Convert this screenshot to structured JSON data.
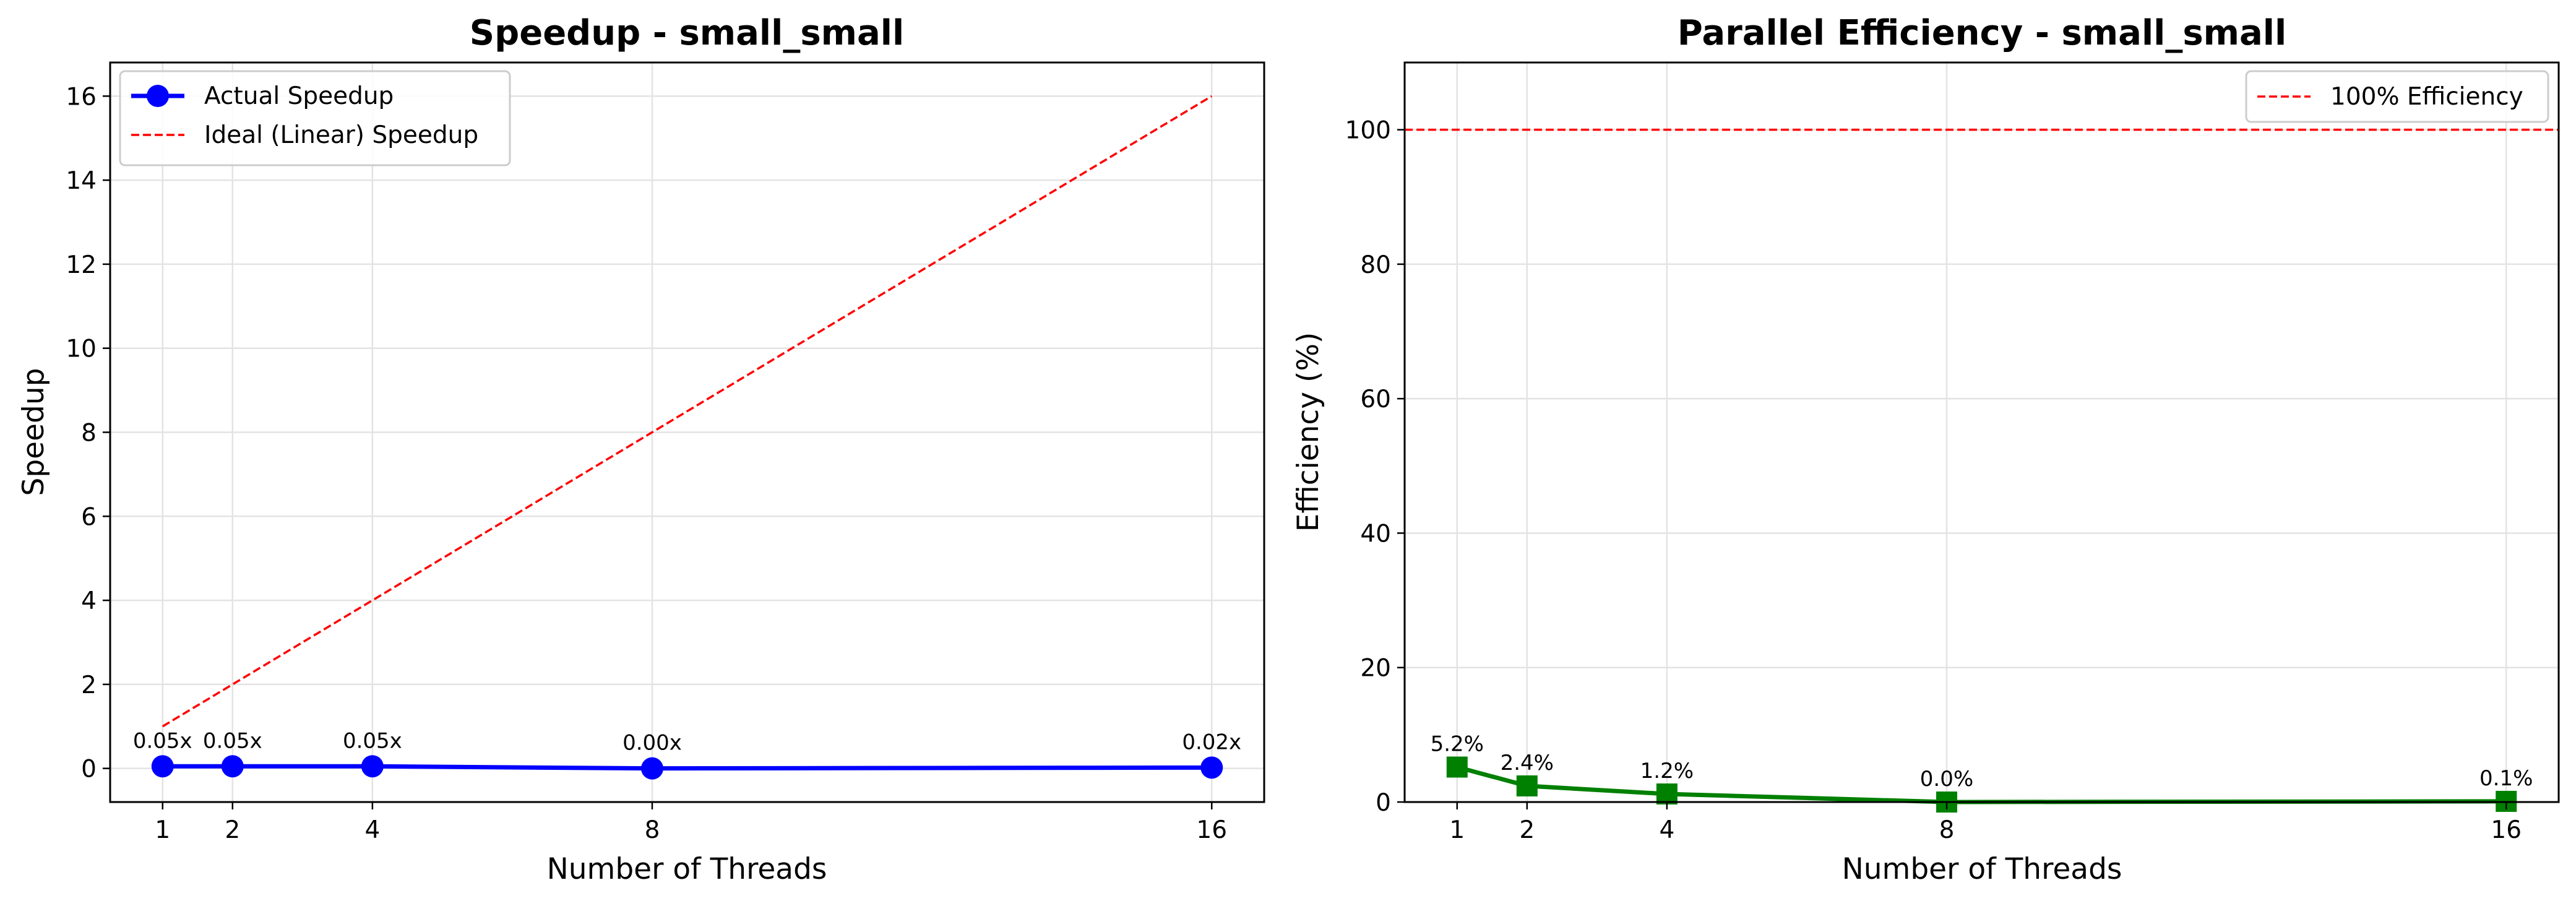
{
  "chart_data": [
    {
      "type": "line",
      "title": "Speedup - small_small",
      "xlabel": "Number of Threads",
      "ylabel": "Speedup",
      "x": [
        1,
        2,
        4,
        8,
        16
      ],
      "xlim": [
        0.25,
        16.75
      ],
      "ylim": [
        -0.8,
        16.8
      ],
      "yticks": [
        0,
        2,
        4,
        6,
        8,
        10,
        12,
        14,
        16
      ],
      "grid": true,
      "legend_position": "top-left",
      "series": [
        {
          "name": "Actual Speedup",
          "values": [
            0.05,
            0.05,
            0.05,
            0.0,
            0.02
          ],
          "labels": [
            "0.05x",
            "0.05x",
            "0.05x",
            "0.00x",
            "0.02x"
          ],
          "color": "#0000ff",
          "style": "solid",
          "marker": "circle"
        },
        {
          "name": "Ideal (Linear) Speedup",
          "values": [
            1,
            2,
            4,
            8,
            16
          ],
          "color": "#ff0000",
          "style": "dashed"
        }
      ]
    },
    {
      "type": "line",
      "title": "Parallel Efficiency - small_small",
      "xlabel": "Number of Threads",
      "ylabel": "Efficiency (%)",
      "x": [
        1,
        2,
        4,
        8,
        16
      ],
      "xlim": [
        0.25,
        16.75
      ],
      "ylim": [
        0,
        110
      ],
      "yticks": [
        0,
        20,
        40,
        60,
        80,
        100
      ],
      "grid": true,
      "legend_position": "top-right",
      "series": [
        {
          "name": "",
          "values": [
            5.2,
            2.4,
            1.2,
            0.0,
            0.1
          ],
          "labels": [
            "5.2%",
            "2.4%",
            "1.2%",
            "0.0%",
            "0.1%"
          ],
          "color": "#008000",
          "style": "solid",
          "marker": "square"
        }
      ],
      "reference_line": {
        "name": "100% Efficiency",
        "value": 100,
        "color": "#ff0000",
        "style": "dashed"
      }
    }
  ]
}
